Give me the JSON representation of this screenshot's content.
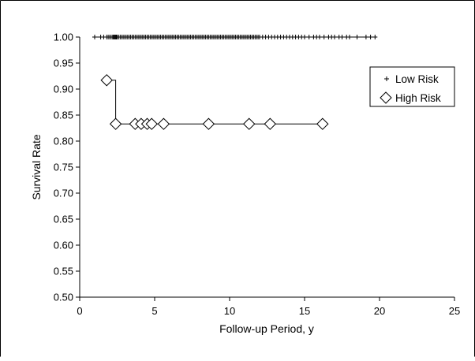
{
  "chart_data": {
    "type": "scatter",
    "title": "",
    "xlabel": "Follow-up Period, y",
    "ylabel": "Survival Rate",
    "xlim": [
      0,
      25
    ],
    "ylim": [
      0.5,
      1.0
    ],
    "xticks": [
      0,
      5,
      10,
      15,
      20,
      25
    ],
    "yticks": [
      0.5,
      0.55,
      0.6,
      0.65,
      0.7,
      0.75,
      0.8,
      0.85,
      0.9,
      0.95,
      1.0
    ],
    "x_tick_labels": [
      "0",
      "5",
      "10",
      "15",
      "20",
      "25"
    ],
    "y_tick_labels": [
      "0.50",
      "0.55",
      "0.60",
      "0.65",
      "0.70",
      "0.75",
      "0.80",
      "0.85",
      "0.90",
      "0.95",
      "1.00"
    ],
    "grid": false,
    "legend_position": "top-right",
    "series": [
      {
        "name": "Low Risk",
        "marker": "plus",
        "color": "#000000",
        "step_line": [
          [
            1.0,
            1.0
          ],
          [
            19.7,
            1.0
          ]
        ],
        "points": [
          {
            "x": 1.0,
            "y": 1.0
          },
          {
            "x": 1.4,
            "y": 1.0
          },
          {
            "x": 1.6,
            "y": 1.0
          },
          {
            "x": 1.8,
            "y": 1.0
          },
          {
            "x": 1.9,
            "y": 1.0
          },
          {
            "x": 2.0,
            "y": 1.0
          },
          {
            "x": 2.1,
            "y": 1.0
          },
          {
            "x": 2.2,
            "y": 1.0
          },
          {
            "x": 2.25,
            "y": 1.0
          },
          {
            "x": 2.3,
            "y": 1.0
          },
          {
            "x": 2.35,
            "y": 1.0
          },
          {
            "x": 2.4,
            "y": 1.0
          },
          {
            "x": 2.45,
            "y": 1.0
          },
          {
            "x": 2.5,
            "y": 1.0
          },
          {
            "x": 2.6,
            "y": 1.0
          },
          {
            "x": 2.7,
            "y": 1.0
          },
          {
            "x": 2.8,
            "y": 1.0
          },
          {
            "x": 2.9,
            "y": 1.0
          },
          {
            "x": 3.0,
            "y": 1.0
          },
          {
            "x": 3.1,
            "y": 1.0
          },
          {
            "x": 3.2,
            "y": 1.0
          },
          {
            "x": 3.3,
            "y": 1.0
          },
          {
            "x": 3.4,
            "y": 1.0
          },
          {
            "x": 3.5,
            "y": 1.0
          },
          {
            "x": 3.6,
            "y": 1.0
          },
          {
            "x": 3.7,
            "y": 1.0
          },
          {
            "x": 3.8,
            "y": 1.0
          },
          {
            "x": 3.9,
            "y": 1.0
          },
          {
            "x": 4.0,
            "y": 1.0
          },
          {
            "x": 4.1,
            "y": 1.0
          },
          {
            "x": 4.2,
            "y": 1.0
          },
          {
            "x": 4.3,
            "y": 1.0
          },
          {
            "x": 4.4,
            "y": 1.0
          },
          {
            "x": 4.5,
            "y": 1.0
          },
          {
            "x": 4.6,
            "y": 1.0
          },
          {
            "x": 4.7,
            "y": 1.0
          },
          {
            "x": 4.8,
            "y": 1.0
          },
          {
            "x": 4.9,
            "y": 1.0
          },
          {
            "x": 5.0,
            "y": 1.0
          },
          {
            "x": 5.1,
            "y": 1.0
          },
          {
            "x": 5.2,
            "y": 1.0
          },
          {
            "x": 5.3,
            "y": 1.0
          },
          {
            "x": 5.4,
            "y": 1.0
          },
          {
            "x": 5.5,
            "y": 1.0
          },
          {
            "x": 5.6,
            "y": 1.0
          },
          {
            "x": 5.7,
            "y": 1.0
          },
          {
            "x": 5.8,
            "y": 1.0
          },
          {
            "x": 5.9,
            "y": 1.0
          },
          {
            "x": 6.0,
            "y": 1.0
          },
          {
            "x": 6.1,
            "y": 1.0
          },
          {
            "x": 6.2,
            "y": 1.0
          },
          {
            "x": 6.3,
            "y": 1.0
          },
          {
            "x": 6.4,
            "y": 1.0
          },
          {
            "x": 6.5,
            "y": 1.0
          },
          {
            "x": 6.6,
            "y": 1.0
          },
          {
            "x": 6.7,
            "y": 1.0
          },
          {
            "x": 6.8,
            "y": 1.0
          },
          {
            "x": 6.9,
            "y": 1.0
          },
          {
            "x": 7.0,
            "y": 1.0
          },
          {
            "x": 7.1,
            "y": 1.0
          },
          {
            "x": 7.2,
            "y": 1.0
          },
          {
            "x": 7.3,
            "y": 1.0
          },
          {
            "x": 7.4,
            "y": 1.0
          },
          {
            "x": 7.5,
            "y": 1.0
          },
          {
            "x": 7.6,
            "y": 1.0
          },
          {
            "x": 7.7,
            "y": 1.0
          },
          {
            "x": 7.8,
            "y": 1.0
          },
          {
            "x": 7.9,
            "y": 1.0
          },
          {
            "x": 8.0,
            "y": 1.0
          },
          {
            "x": 8.1,
            "y": 1.0
          },
          {
            "x": 8.2,
            "y": 1.0
          },
          {
            "x": 8.3,
            "y": 1.0
          },
          {
            "x": 8.4,
            "y": 1.0
          },
          {
            "x": 8.5,
            "y": 1.0
          },
          {
            "x": 8.6,
            "y": 1.0
          },
          {
            "x": 8.7,
            "y": 1.0
          },
          {
            "x": 8.8,
            "y": 1.0
          },
          {
            "x": 8.9,
            "y": 1.0
          },
          {
            "x": 9.0,
            "y": 1.0
          },
          {
            "x": 9.1,
            "y": 1.0
          },
          {
            "x": 9.2,
            "y": 1.0
          },
          {
            "x": 9.3,
            "y": 1.0
          },
          {
            "x": 9.4,
            "y": 1.0
          },
          {
            "x": 9.5,
            "y": 1.0
          },
          {
            "x": 9.6,
            "y": 1.0
          },
          {
            "x": 9.7,
            "y": 1.0
          },
          {
            "x": 9.8,
            "y": 1.0
          },
          {
            "x": 9.9,
            "y": 1.0
          },
          {
            "x": 10.0,
            "y": 1.0
          },
          {
            "x": 10.1,
            "y": 1.0
          },
          {
            "x": 10.2,
            "y": 1.0
          },
          {
            "x": 10.3,
            "y": 1.0
          },
          {
            "x": 10.4,
            "y": 1.0
          },
          {
            "x": 10.5,
            "y": 1.0
          },
          {
            "x": 10.6,
            "y": 1.0
          },
          {
            "x": 10.7,
            "y": 1.0
          },
          {
            "x": 10.8,
            "y": 1.0
          },
          {
            "x": 10.9,
            "y": 1.0
          },
          {
            "x": 11.0,
            "y": 1.0
          },
          {
            "x": 11.1,
            "y": 1.0
          },
          {
            "x": 11.2,
            "y": 1.0
          },
          {
            "x": 11.3,
            "y": 1.0
          },
          {
            "x": 11.4,
            "y": 1.0
          },
          {
            "x": 11.5,
            "y": 1.0
          },
          {
            "x": 11.6,
            "y": 1.0
          },
          {
            "x": 11.7,
            "y": 1.0
          },
          {
            "x": 11.8,
            "y": 1.0
          },
          {
            "x": 11.9,
            "y": 1.0
          },
          {
            "x": 12.0,
            "y": 1.0
          },
          {
            "x": 12.2,
            "y": 1.0
          },
          {
            "x": 12.4,
            "y": 1.0
          },
          {
            "x": 12.6,
            "y": 1.0
          },
          {
            "x": 12.8,
            "y": 1.0
          },
          {
            "x": 13.0,
            "y": 1.0
          },
          {
            "x": 13.2,
            "y": 1.0
          },
          {
            "x": 13.4,
            "y": 1.0
          },
          {
            "x": 13.6,
            "y": 1.0
          },
          {
            "x": 13.8,
            "y": 1.0
          },
          {
            "x": 14.0,
            "y": 1.0
          },
          {
            "x": 14.2,
            "y": 1.0
          },
          {
            "x": 14.4,
            "y": 1.0
          },
          {
            "x": 14.6,
            "y": 1.0
          },
          {
            "x": 14.8,
            "y": 1.0
          },
          {
            "x": 15.0,
            "y": 1.0
          },
          {
            "x": 15.3,
            "y": 1.0
          },
          {
            "x": 15.6,
            "y": 1.0
          },
          {
            "x": 15.8,
            "y": 1.0
          },
          {
            "x": 16.0,
            "y": 1.0
          },
          {
            "x": 16.3,
            "y": 1.0
          },
          {
            "x": 16.6,
            "y": 1.0
          },
          {
            "x": 16.8,
            "y": 1.0
          },
          {
            "x": 17.0,
            "y": 1.0
          },
          {
            "x": 17.3,
            "y": 1.0
          },
          {
            "x": 17.5,
            "y": 1.0
          },
          {
            "x": 17.8,
            "y": 1.0
          },
          {
            "x": 18.0,
            "y": 1.0
          },
          {
            "x": 18.5,
            "y": 1.0
          },
          {
            "x": 19.1,
            "y": 1.0
          },
          {
            "x": 19.4,
            "y": 1.0
          },
          {
            "x": 19.7,
            "y": 1.0
          }
        ]
      },
      {
        "name": "High Risk",
        "marker": "open-diamond",
        "color": "#000000",
        "step_line": [
          [
            1.8,
            0.917
          ],
          [
            2.4,
            0.917
          ],
          [
            2.4,
            0.833
          ],
          [
            16.2,
            0.833
          ]
        ],
        "points": [
          {
            "x": 1.8,
            "y": 0.917
          },
          {
            "x": 2.4,
            "y": 0.833
          },
          {
            "x": 3.7,
            "y": 0.833
          },
          {
            "x": 4.1,
            "y": 0.833
          },
          {
            "x": 4.5,
            "y": 0.833
          },
          {
            "x": 4.8,
            "y": 0.833
          },
          {
            "x": 5.6,
            "y": 0.833
          },
          {
            "x": 8.6,
            "y": 0.833
          },
          {
            "x": 11.3,
            "y": 0.833
          },
          {
            "x": 12.7,
            "y": 0.833
          },
          {
            "x": 16.2,
            "y": 0.833
          }
        ]
      }
    ]
  }
}
